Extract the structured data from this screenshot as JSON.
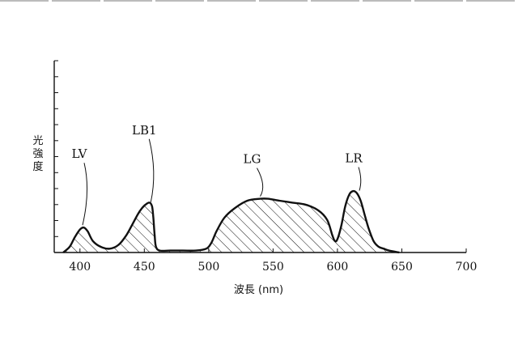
{
  "chart_data": {
    "type": "area",
    "title": "",
    "xlabel": "波長 (nm)",
    "ylabel": "光強度",
    "xlim": [
      380,
      700
    ],
    "ylim": [
      0,
      1
    ],
    "xticks": [
      400,
      450,
      500,
      550,
      600,
      650,
      700
    ],
    "y_tick_count": 12,
    "y_tick_labels_shown": false,
    "grid": false,
    "legend": "none",
    "fill_pattern": "diagonal-hatch",
    "series": [
      {
        "x": [
          387,
          392,
          396,
          400,
          403,
          406,
          410,
          416,
          423,
          430,
          436,
          441,
          445,
          448,
          451,
          454,
          456,
          457,
          458,
          459,
          462,
          470,
          480,
          490,
          498,
          502,
          506,
          512,
          520,
          530,
          540,
          546,
          555,
          565,
          575,
          585,
          592,
          596,
          598,
          600,
          603,
          606,
          609,
          612,
          615,
          618,
          621,
          624,
          628,
          632,
          636,
          640,
          648
        ],
        "y": [
          0.0,
          0.03,
          0.08,
          0.12,
          0.13,
          0.11,
          0.06,
          0.03,
          0.02,
          0.04,
          0.09,
          0.15,
          0.2,
          0.23,
          0.25,
          0.26,
          0.24,
          0.18,
          0.09,
          0.03,
          0.01,
          0.01,
          0.01,
          0.01,
          0.02,
          0.05,
          0.11,
          0.18,
          0.23,
          0.27,
          0.28,
          0.28,
          0.27,
          0.26,
          0.25,
          0.22,
          0.17,
          0.09,
          0.06,
          0.07,
          0.14,
          0.24,
          0.3,
          0.32,
          0.31,
          0.27,
          0.2,
          0.13,
          0.06,
          0.03,
          0.02,
          0.01,
          0.0
        ]
      }
    ],
    "annotations": [
      {
        "text": "LV",
        "x": 402,
        "y": 0.13
      },
      {
        "text": "LB1",
        "x": 455,
        "y": 0.25
      },
      {
        "text": "LG",
        "x": 540,
        "y": 0.28
      },
      {
        "text": "LR",
        "x": 617,
        "y": 0.31
      }
    ]
  }
}
